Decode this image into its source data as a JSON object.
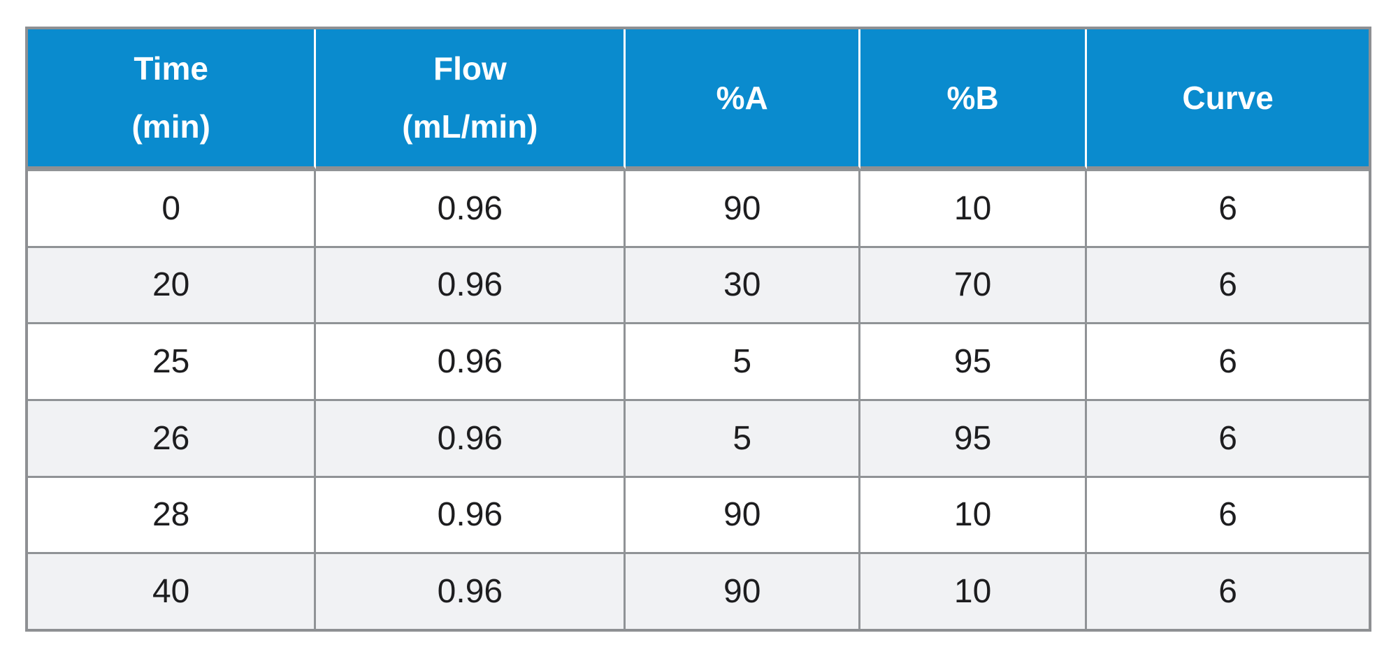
{
  "chart_data": {
    "type": "table",
    "columns": [
      "Time\n(min)",
      "Flow\n(mL/min)",
      "%A",
      "%B",
      "Curve"
    ],
    "rows": [
      [
        "0",
        "0.96",
        "90",
        "10",
        "6"
      ],
      [
        "20",
        "0.96",
        "30",
        "70",
        "6"
      ],
      [
        "25",
        "0.96",
        "5",
        "95",
        "6"
      ],
      [
        "26",
        "0.96",
        "5",
        "95",
        "6"
      ],
      [
        "28",
        "0.96",
        "90",
        "10",
        "6"
      ],
      [
        "40",
        "0.96",
        "90",
        "10",
        "6"
      ]
    ],
    "layout": {
      "header_position": "top",
      "row_striping": "odd-rows-gray",
      "grid": "on"
    },
    "colors": {
      "header_bg": "#0a8bce",
      "header_text": "#ffffff",
      "row_alt_bg": "#f1f2f4",
      "row_bg": "#ffffff",
      "grid_border": "#8e9093",
      "header_separator": "#ffffff",
      "body_text": "#1d1d1f"
    }
  }
}
